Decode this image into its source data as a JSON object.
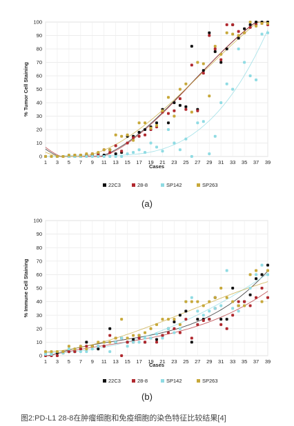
{
  "caption": "图2:PD-L1 28-8在肿瘤细胞和免疫细胞的染色特征比较结果[4]",
  "chart_data": [
    {
      "type": "scatter",
      "panel_label": "(a)",
      "ylabel": "% Tumor Cell Staining",
      "xlabel": "Cases",
      "xlim": [
        1,
        39
      ],
      "ylim": [
        0,
        100
      ],
      "x_ticks": [
        1,
        3,
        5,
        7,
        9,
        11,
        13,
        15,
        17,
        19,
        21,
        23,
        25,
        27,
        29,
        31,
        33,
        35,
        37,
        39
      ],
      "y_ticks": [
        0,
        10,
        20,
        30,
        40,
        50,
        60,
        70,
        80,
        90,
        100
      ],
      "grid": true,
      "legend_position": "bottom",
      "trendlines": true,
      "x": [
        1,
        2,
        3,
        4,
        5,
        6,
        7,
        8,
        9,
        10,
        11,
        12,
        13,
        14,
        15,
        16,
        17,
        18,
        19,
        20,
        21,
        22,
        23,
        24,
        25,
        26,
        27,
        28,
        29,
        30,
        31,
        32,
        33,
        34,
        35,
        36,
        37,
        38,
        39
      ],
      "series": [
        {
          "name": "22C3",
          "color": "#111111",
          "values": [
            0,
            0,
            0,
            0,
            0,
            0,
            0,
            1,
            1,
            2,
            1,
            5,
            2,
            3,
            15,
            15,
            18,
            20,
            22,
            25,
            35,
            25,
            40,
            38,
            37,
            82,
            35,
            64,
            92,
            78,
            70,
            80,
            98,
            88,
            95,
            98,
            100,
            100,
            100
          ]
        },
        {
          "name": "28-8",
          "color": "#b0282e",
          "values": [
            0,
            0,
            0,
            0,
            0,
            1,
            1,
            1,
            2,
            1,
            5,
            3,
            8,
            4,
            10,
            14,
            15,
            16,
            20,
            22,
            33,
            32,
            34,
            43,
            35,
            68,
            34,
            62,
            90,
            80,
            72,
            98,
            98,
            93,
            92,
            96,
            98,
            99,
            98
          ]
        },
        {
          "name": "SP142",
          "color": "#8fdbe3",
          "values": [
            0,
            0,
            0,
            0,
            0,
            0,
            0,
            0,
            0,
            0,
            0,
            0,
            0,
            0,
            2,
            3,
            5,
            3,
            10,
            7,
            4,
            20,
            10,
            5,
            13,
            0,
            25,
            26,
            2,
            15,
            40,
            54,
            50,
            80,
            70,
            60,
            57,
            91,
            92
          ]
        },
        {
          "name": "SP263",
          "color": "#c7a83a",
          "values": [
            0,
            0,
            0,
            0,
            1,
            1,
            1,
            2,
            2,
            3,
            5,
            5,
            16,
            15,
            16,
            12,
            25,
            25,
            21,
            23,
            34,
            44,
            30,
            50,
            54,
            33,
            70,
            69,
            45,
            82,
            76,
            92,
            91,
            90,
            92,
            100,
            97,
            99,
            99
          ]
        }
      ]
    },
    {
      "type": "scatter",
      "panel_label": "(b)",
      "ylabel": "% Immune Cell Staining",
      "xlabel": "Cases",
      "xlim": [
        1,
        39
      ],
      "ylim": [
        0,
        100
      ],
      "x_ticks": [
        1,
        3,
        5,
        7,
        9,
        11,
        13,
        15,
        17,
        19,
        21,
        23,
        25,
        27,
        29,
        31,
        33,
        35,
        37,
        39
      ],
      "y_ticks": [
        0,
        10,
        20,
        30,
        40,
        50,
        60,
        70,
        80,
        90,
        100
      ],
      "grid": true,
      "legend_position": "bottom",
      "trendlines": true,
      "x": [
        1,
        2,
        3,
        4,
        5,
        6,
        7,
        8,
        9,
        10,
        11,
        12,
        13,
        14,
        15,
        16,
        17,
        18,
        19,
        20,
        21,
        22,
        23,
        24,
        25,
        26,
        27,
        28,
        29,
        30,
        31,
        32,
        33,
        34,
        35,
        36,
        37,
        38,
        39
      ],
      "series": [
        {
          "name": "22C3",
          "color": "#111111",
          "values": [
            1,
            1,
            2,
            2,
            3,
            3,
            5,
            10,
            7,
            5,
            7,
            20,
            10,
            13,
            10,
            12,
            15,
            10,
            13,
            12,
            15,
            20,
            25,
            30,
            33,
            10,
            27,
            27,
            27,
            43,
            27,
            27,
            50,
            37,
            40,
            45,
            57,
            60,
            67
          ]
        },
        {
          "name": "28-8",
          "color": "#b0282e",
          "values": [
            0,
            0,
            0,
            3,
            3,
            3,
            5,
            7,
            7,
            7,
            7,
            15,
            13,
            0,
            10,
            10,
            13,
            10,
            13,
            10,
            15,
            17,
            20,
            17,
            27,
            13,
            23,
            26,
            27,
            35,
            23,
            20,
            30,
            40,
            40,
            37,
            43,
            50,
            43
          ]
        },
        {
          "name": "SP142",
          "color": "#8fdbe3",
          "values": [
            1,
            1,
            3,
            2,
            5,
            5,
            3,
            3,
            5,
            7,
            10,
            3,
            10,
            13,
            7,
            10,
            10,
            13,
            13,
            16,
            13,
            20,
            17,
            20,
            40,
            43,
            33,
            30,
            33,
            35,
            37,
            63,
            35,
            33,
            37,
            50,
            60,
            67,
            60
          ]
        },
        {
          "name": "SP263",
          "color": "#c7a83a",
          "values": [
            3,
            3,
            3,
            3,
            7,
            5,
            7,
            5,
            7,
            10,
            10,
            10,
            13,
            27,
            13,
            15,
            15,
            17,
            20,
            23,
            27,
            27,
            27,
            23,
            40,
            40,
            40,
            37,
            40,
            43,
            50,
            43,
            40,
            37,
            37,
            60,
            63,
            40,
            63
          ]
        }
      ]
    }
  ]
}
